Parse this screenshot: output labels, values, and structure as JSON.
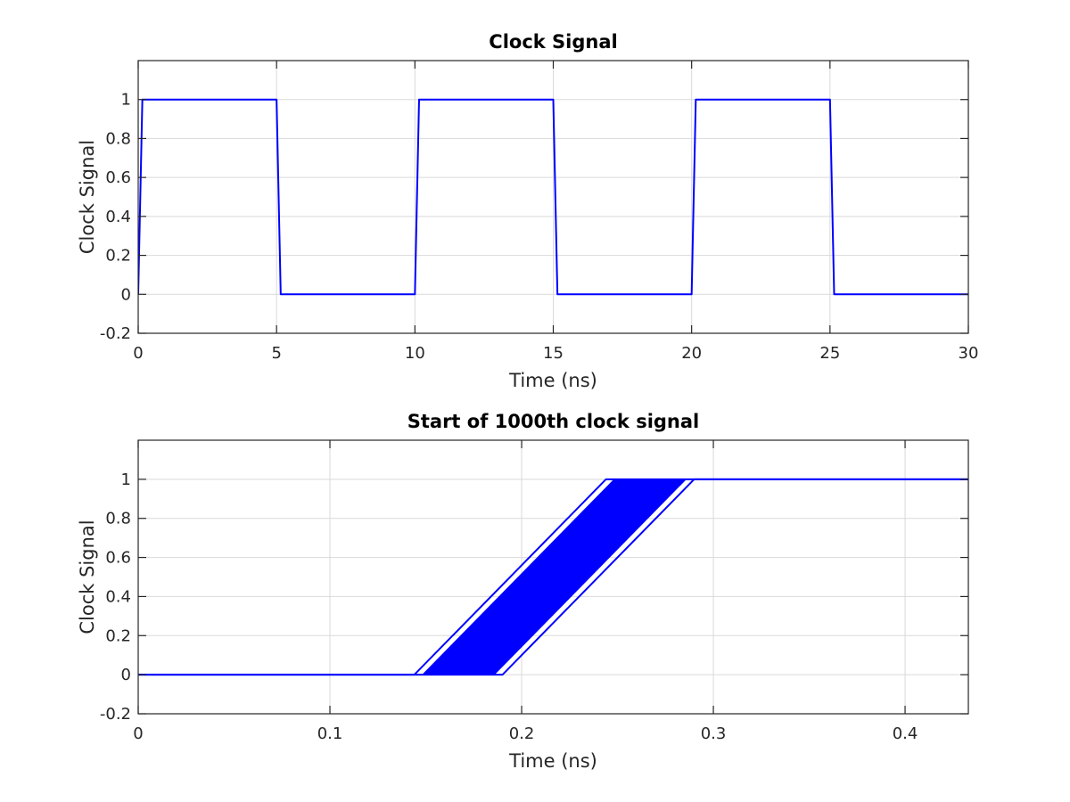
{
  "colors": {
    "series": "#0000ff",
    "grid": "#d9d9d9",
    "axis": "#262626",
    "background": "#ffffff"
  },
  "chart_data": [
    {
      "type": "line",
      "title": "Clock Signal",
      "xlabel": "Time (ns)",
      "ylabel": "Clock Signal",
      "xlim": [
        0,
        30
      ],
      "ylim": [
        -0.2,
        1.2
      ],
      "xticks": [
        0,
        5,
        10,
        15,
        20,
        25,
        30
      ],
      "xtick_labels": [
        "0",
        "5",
        "10",
        "15",
        "20",
        "25",
        "30"
      ],
      "yticks": [
        -0.2,
        0,
        0.2,
        0.4,
        0.6,
        0.8,
        1
      ],
      "ytick_labels": [
        "-0.2",
        "0",
        "0.2",
        "0.4",
        "0.6",
        "0.8",
        "1"
      ],
      "grid": true,
      "series": [
        {
          "color": "#0000ff",
          "x": [
            0,
            0.15,
            5,
            5.15,
            10,
            10.15,
            15,
            15.15,
            20,
            20.15,
            25,
            25.15,
            30
          ],
          "y": [
            0,
            1,
            1,
            0,
            0,
            1,
            1,
            0,
            0,
            1,
            1,
            0,
            0
          ]
        }
      ]
    },
    {
      "type": "line",
      "title": "Start of 1000th clock signal",
      "xlabel": "Time (ns)",
      "ylabel": "Clock Signal",
      "xlim": [
        0,
        0.433
      ],
      "ylim": [
        -0.2,
        1.2
      ],
      "xticks": [
        0,
        0.1,
        0.2,
        0.3,
        0.4
      ],
      "xtick_labels": [
        "0",
        "0.1",
        "0.2",
        "0.3",
        "0.4"
      ],
      "yticks": [
        -0.2,
        0,
        0.2,
        0.4,
        0.6,
        0.8,
        1
      ],
      "ytick_labels": [
        "-0.2",
        "0",
        "0.2",
        "0.4",
        "0.6",
        "0.8",
        "1"
      ],
      "grid": true,
      "rise_time_ns": 0.1,
      "edge_start_range_ns": [
        0.144,
        0.19
      ],
      "overlaid_traces": "many",
      "series": [
        {
          "color": "#0000ff",
          "x": [
            0,
            0.144,
            0.244,
            0.433
          ],
          "y": [
            0,
            0,
            1,
            1
          ]
        },
        {
          "color": "#0000ff",
          "x": [
            0,
            0.19,
            0.29,
            0.433
          ],
          "y": [
            0,
            0,
            1,
            1
          ]
        }
      ]
    }
  ]
}
